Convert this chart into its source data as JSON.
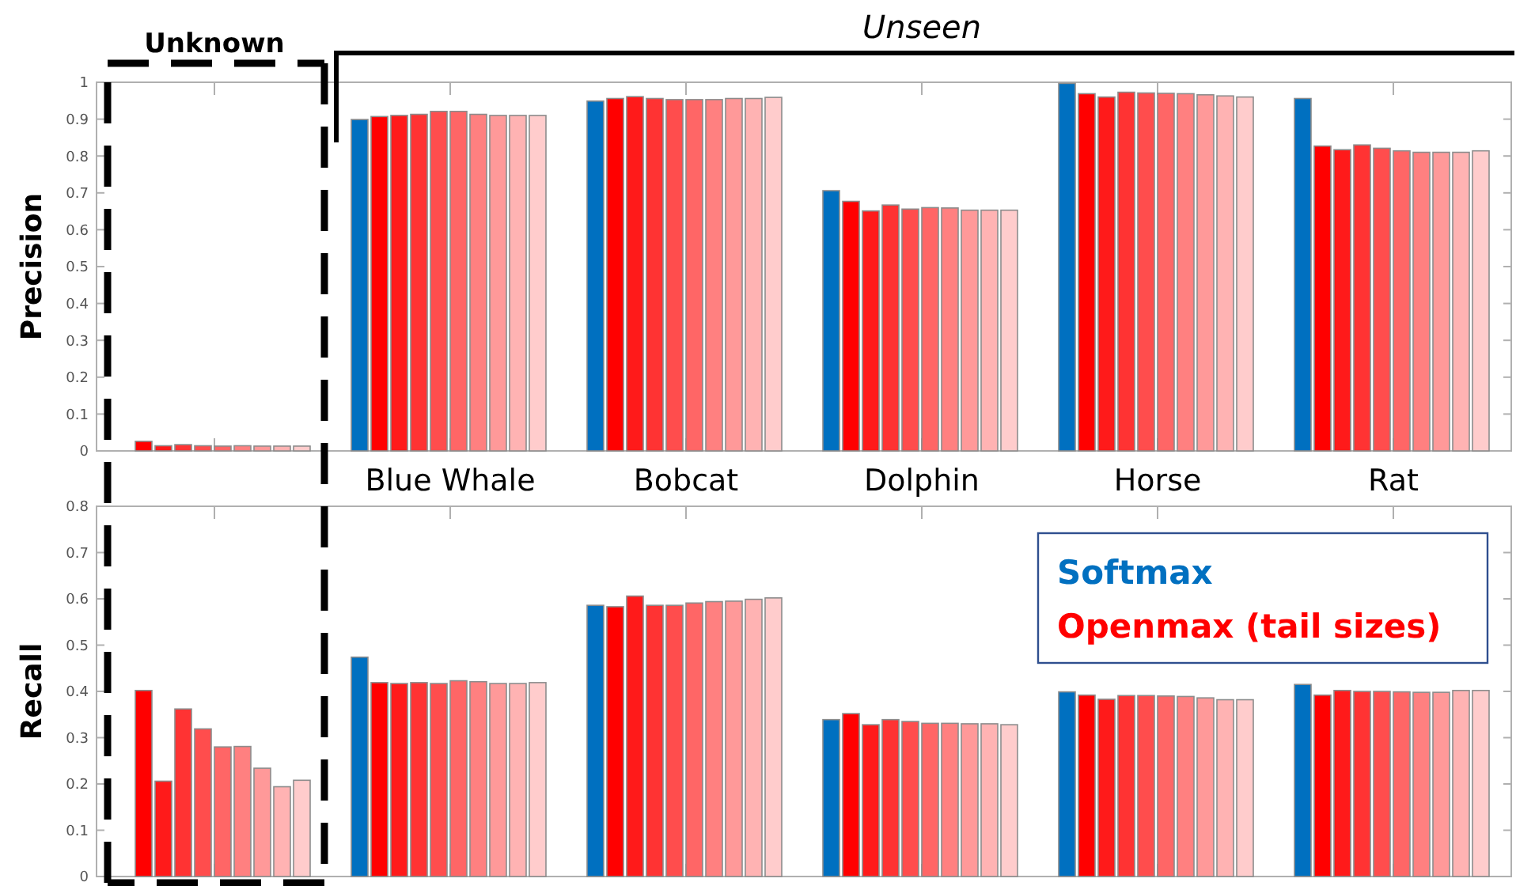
{
  "chart_data": [
    {
      "type": "bar",
      "ylabel": "Precision",
      "categories": [
        "Unknown",
        "Blue Whale",
        "Bobcat",
        "Dolphin",
        "Horse",
        "Rat"
      ],
      "annotations": [
        "Unseen"
      ],
      "ylim": [
        0,
        1
      ],
      "yticks": [
        0,
        0.1,
        0.2,
        0.3,
        0.4,
        0.5,
        0.6,
        0.7,
        0.8,
        0.9,
        1
      ],
      "grid": false,
      "series": [
        {
          "color": "#0070c0",
          "values": [
            null,
            0.899,
            0.949,
            0.706,
            0.997,
            0.956
          ]
        },
        {
          "color": "#ff0000",
          "values": [
            0.026,
            0.907,
            0.956,
            0.677,
            0.969,
            0.827
          ]
        },
        {
          "color": "#ff1a1a",
          "values": [
            0.014,
            0.91,
            0.961,
            0.651,
            0.96,
            0.817
          ]
        },
        {
          "color": "#ff3333",
          "values": [
            0.017,
            0.913,
            0.956,
            0.667,
            0.973,
            0.83
          ]
        },
        {
          "color": "#ff4d4d",
          "values": [
            0.014,
            0.921,
            0.953,
            0.656,
            0.971,
            0.821
          ]
        },
        {
          "color": "#ff6666",
          "values": [
            0.013,
            0.921,
            0.953,
            0.66,
            0.97,
            0.814
          ]
        },
        {
          "color": "#ff8080",
          "values": [
            0.014,
            0.913,
            0.953,
            0.659,
            0.969,
            0.81
          ]
        },
        {
          "color": "#ff9999",
          "values": [
            0.013,
            0.91,
            0.956,
            0.653,
            0.966,
            0.81
          ]
        },
        {
          "color": "#ffb3b3",
          "values": [
            0.013,
            0.91,
            0.956,
            0.653,
            0.963,
            0.81
          ]
        },
        {
          "color": "#ffcccc",
          "values": [
            0.013,
            0.91,
            0.959,
            0.653,
            0.96,
            0.814
          ]
        }
      ]
    },
    {
      "type": "bar",
      "ylabel": "Recall",
      "categories": [
        null,
        null,
        null,
        null,
        null,
        null
      ],
      "tick_labels": "y",
      "ylim": [
        0,
        0.8
      ],
      "yticks": [
        0,
        0.1,
        0.2,
        0.3,
        0.4,
        0.5,
        0.6,
        0.7,
        0.8
      ],
      "grid": false,
      "legend": "top right",
      "series": [
        {
          "name": "Softmax",
          "color": "#0070c0",
          "values": [
            null,
            0.474,
            0.586,
            0.339,
            0.399,
            0.415
          ]
        },
        {
          "name": "Openmax (tail sizes)",
          "color": "#ff0000",
          "values": [
            0.402,
            0.419,
            0.583,
            0.352,
            0.392,
            0.392
          ]
        },
        {
          "color": "#ff1a1a",
          "values": [
            0.206,
            0.417,
            0.606,
            0.328,
            0.383,
            0.402
          ]
        },
        {
          "color": "#ff3333",
          "values": [
            0.362,
            0.419,
            0.586,
            0.339,
            0.391,
            0.4
          ]
        },
        {
          "color": "#ff4d4d",
          "values": [
            0.319,
            0.417,
            0.586,
            0.335,
            0.391,
            0.4
          ]
        },
        {
          "color": "#ff6666",
          "values": [
            0.28,
            0.423,
            0.591,
            0.331,
            0.39,
            0.399
          ]
        },
        {
          "color": "#ff8080",
          "values": [
            0.281,
            0.421,
            0.594,
            0.331,
            0.389,
            0.398
          ]
        },
        {
          "color": "#ff9999",
          "values": [
            0.234,
            0.417,
            0.595,
            0.33,
            0.386,
            0.398
          ]
        },
        {
          "color": "#ffb3b3",
          "values": [
            0.194,
            0.417,
            0.599,
            0.33,
            0.382,
            0.402
          ]
        },
        {
          "color": "#ffcccc",
          "values": [
            0.208,
            0.419,
            0.602,
            0.328,
            0.382,
            0.402
          ]
        }
      ]
    }
  ]
}
